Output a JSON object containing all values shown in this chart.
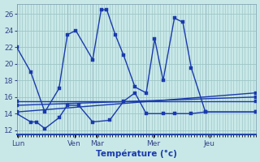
{
  "background_color": "#c8e8e8",
  "grid_color": "#a0c8c8",
  "line_color": "#1a3aad",
  "ylim": [
    11.5,
    27.2
  ],
  "yticks": [
    12,
    14,
    16,
    18,
    20,
    22,
    24,
    26
  ],
  "xlabel": "Température (°c)",
  "day_labels": [
    "Lun",
    "Ven",
    "Mar",
    "Mer",
    "Jeu"
  ],
  "day_x_pos": [
    0.5,
    20.5,
    28.5,
    48.5,
    68.5
  ],
  "vline_x": [
    0,
    18,
    27,
    46,
    67,
    85
  ],
  "xlim": [
    0,
    85
  ],
  "n_xticks": 86,
  "max_line": {
    "x": [
      0,
      4,
      8,
      12,
      18,
      21,
      27,
      29,
      31,
      33,
      37,
      41,
      46,
      48,
      50,
      56,
      59,
      61,
      67,
      71,
      75,
      78,
      85
    ],
    "y": [
      22,
      19,
      14.2,
      17,
      23.5,
      24,
      20.5,
      26.5,
      26.5,
      23.5,
      21,
      17.2,
      16.5,
      23.0,
      18.0,
      25.5,
      25,
      19.5,
      14.2,
      14.2,
      14.2,
      14.2,
      14.2
    ]
  },
  "min_line": {
    "x": [
      0,
      4,
      6,
      8,
      12,
      18,
      22,
      27,
      32,
      37,
      41,
      46,
      50,
      56,
      61,
      67,
      71,
      75,
      85
    ],
    "y": [
      14,
      13,
      13,
      12.2,
      13.5,
      15,
      15,
      13,
      13.2,
      15.5,
      16.5,
      14,
      14,
      14,
      14,
      14.2,
      14.2,
      14.2,
      14.2
    ]
  },
  "avg_lines": [
    {
      "x": [
        0,
        85
      ],
      "y": [
        14.2,
        16.5
      ]
    },
    {
      "x": [
        0,
        85
      ],
      "y": [
        15.0,
        16.0
      ]
    },
    {
      "x": [
        0,
        85
      ],
      "y": [
        15.5,
        15.5
      ]
    }
  ],
  "linewidth": 1.0,
  "markersize": 2.2
}
